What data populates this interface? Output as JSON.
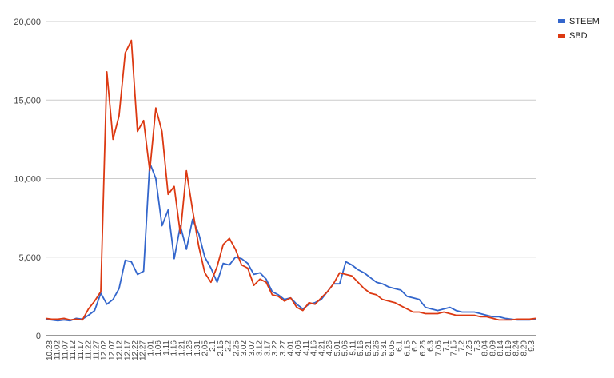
{
  "chart_data": {
    "type": "line",
    "title": "",
    "xlabel": "",
    "ylabel": "",
    "ylim": [
      0,
      20000
    ],
    "yticks": [
      0,
      5000,
      10000,
      15000,
      20000
    ],
    "ytick_labels": [
      "0",
      "5,000",
      "10,000",
      "15,000",
      "20,000"
    ],
    "grid": true,
    "legend_position": "top-right",
    "x_tick_labels": [
      "10.28",
      "11.02",
      "11.07",
      "11.12",
      "11.17",
      "11.22",
      "11.27",
      "12.02",
      "12.07",
      "12.12",
      "12.17",
      "12.22",
      "12.27",
      "1.01",
      "1.06",
      "1.11",
      "1.16",
      "1.21",
      "1.26",
      "1.31",
      "2.05",
      "2.1",
      "2.15",
      "2.2",
      "2.25",
      "3.02",
      "3.07",
      "3.12",
      "3.17",
      "3.22",
      "3.27",
      "4.01",
      "4.06",
      "4.11",
      "4.16",
      "4.21",
      "4.26",
      "5.01",
      "5.06",
      "5.11",
      "5.16",
      "5.21",
      "5.26",
      "5.31",
      "6.05",
      "6.1",
      "6.15",
      "6.2",
      "6.25",
      "6.3",
      "7.05",
      "7.1",
      "7.15",
      "7.2",
      "7.25",
      "7.3",
      "8.04",
      "8.09",
      "8.14",
      "8.19",
      "8.24",
      "8.29",
      "9.3"
    ],
    "series": [
      {
        "name": "STEEM",
        "color": "#3366cc",
        "values": [
          1050,
          1000,
          950,
          1000,
          950,
          1100,
          1050,
          1300,
          1600,
          2700,
          2000,
          2300,
          3000,
          4800,
          4700,
          3900,
          4100,
          11000,
          10000,
          7000,
          8000,
          4900,
          7000,
          5500,
          7400,
          6500,
          5000,
          4300,
          3400,
          4600,
          4500,
          5000,
          4900,
          4600,
          3900,
          4000,
          3600,
          2800,
          2600,
          2300,
          2400,
          2000,
          1700,
          2000,
          2100,
          2300,
          2800,
          3300,
          3300,
          4700,
          4500,
          4200,
          4000,
          3700,
          3400,
          3300,
          3100,
          3000,
          2900,
          2500,
          2400,
          2300,
          1800,
          1700,
          1600,
          1700,
          1800,
          1600,
          1500,
          1500,
          1500,
          1400,
          1300,
          1200,
          1200,
          1100,
          1050,
          1000,
          1000,
          1000,
          1050
        ]
      },
      {
        "name": "SBD",
        "color": "#dc3912",
        "values": [
          1100,
          1050,
          1050,
          1100,
          1000,
          1050,
          1000,
          1700,
          2200,
          2800,
          16800,
          12500,
          14000,
          18000,
          18800,
          13000,
          13700,
          10500,
          14500,
          13000,
          9000,
          9500,
          6500,
          10500,
          8000,
          5700,
          4000,
          3400,
          4400,
          5800,
          6200,
          5500,
          4500,
          4300,
          3200,
          3600,
          3400,
          2600,
          2500,
          2200,
          2400,
          1800,
          1600,
          2100,
          2000,
          2400,
          2800,
          3300,
          4000,
          3900,
          3800,
          3400,
          3000,
          2700,
          2600,
          2300,
          2200,
          2100,
          1900,
          1700,
          1500,
          1500,
          1400,
          1400,
          1400,
          1500,
          1400,
          1300,
          1300,
          1300,
          1300,
          1200,
          1200,
          1100,
          1000,
          1000,
          1000,
          1050,
          1050,
          1050,
          1100
        ]
      }
    ]
  }
}
